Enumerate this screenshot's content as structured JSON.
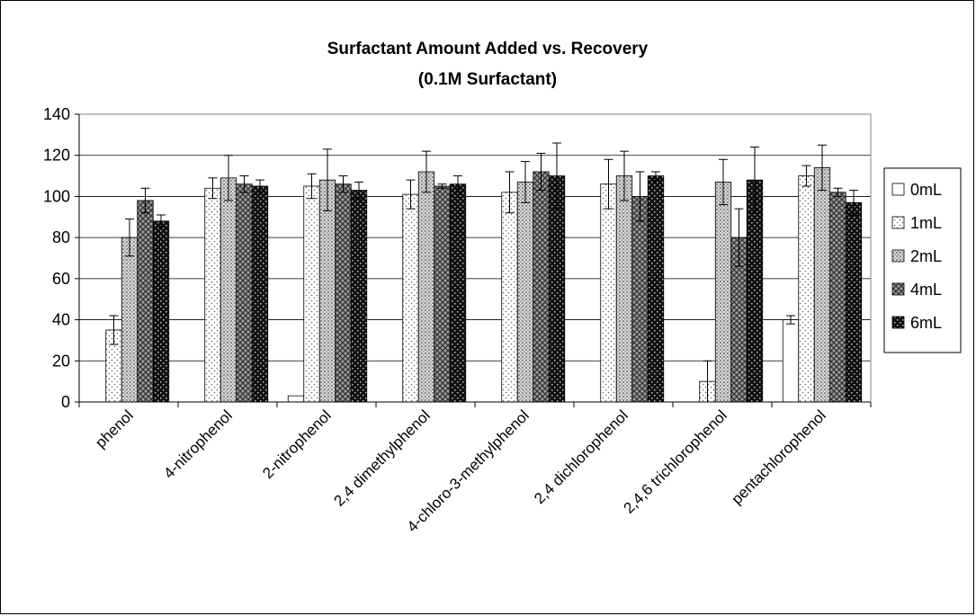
{
  "chart_data": {
    "type": "bar",
    "title": "Surfactant Amount Added vs. Recovery",
    "subtitle": "(0.1M Surfactant)",
    "xlabel": "",
    "ylabel": "",
    "ylim": [
      0,
      140
    ],
    "yticks": [
      0,
      20,
      40,
      60,
      80,
      100,
      120,
      140
    ],
    "grid": true,
    "legend": "right",
    "categories": [
      "phenol",
      "4-nitrophenol",
      "2-nitrophenol",
      "2,4 dimethylphenol",
      "4-chloro-3-methylphenol",
      "2,4 dichlorophenol",
      "2,4,6 trichlorophenol",
      "pentachlorophenol"
    ],
    "series": [
      {
        "name": "0mL",
        "values": [
          0,
          0,
          3,
          0,
          0,
          0,
          0,
          40
        ],
        "errors": [
          0,
          0,
          0,
          0,
          0,
          0,
          0,
          2
        ]
      },
      {
        "name": "1mL",
        "values": [
          35,
          104,
          105,
          101,
          102,
          106,
          10,
          110
        ],
        "errors": [
          7,
          5,
          6,
          7,
          10,
          12,
          10,
          5
        ]
      },
      {
        "name": "2mL",
        "values": [
          80,
          109,
          108,
          112,
          107,
          110,
          107,
          114
        ],
        "errors": [
          9,
          11,
          15,
          10,
          10,
          12,
          11,
          11
        ]
      },
      {
        "name": "4mL",
        "values": [
          98,
          106,
          106,
          105,
          112,
          100,
          80,
          102
        ],
        "errors": [
          6,
          4,
          4,
          1,
          9,
          12,
          14,
          2
        ]
      },
      {
        "name": "6mL",
        "values": [
          88,
          105,
          103,
          106,
          110,
          110,
          108,
          97
        ],
        "errors": [
          3,
          3,
          4,
          4,
          16,
          2,
          16,
          6
        ]
      }
    ]
  }
}
